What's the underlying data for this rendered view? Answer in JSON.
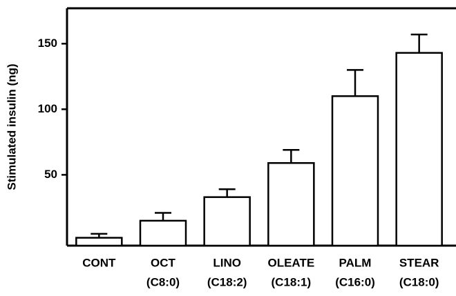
{
  "chart_data": {
    "type": "bar",
    "y_label": "Stimulated insulin (ng)",
    "categories": [
      "CONT",
      "OCT",
      "LINO",
      "OLEATE",
      "PALM",
      "STEAR"
    ],
    "category_notes": [
      null,
      "(C8:0)",
      "(C18:2)",
      "(C18:1)",
      "(C16:0)",
      "(C18:0)"
    ],
    "values": [
      2,
      15,
      33,
      59,
      110,
      143
    ],
    "errors": [
      3,
      6,
      6,
      10,
      20,
      14
    ],
    "color": "#ffffff",
    "ylim": [
      -4,
      177
    ],
    "yticks": [
      50,
      100,
      150
    ],
    "grid": false
  }
}
